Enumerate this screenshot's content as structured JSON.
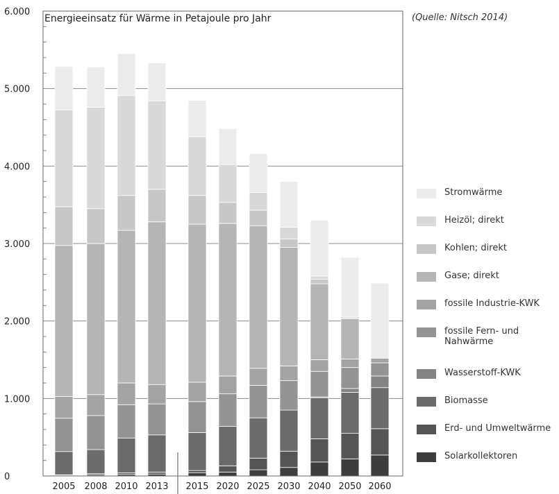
{
  "chart_data": {
    "type": "bar",
    "stacked": true,
    "title": "Energieeinsatz für Wärme in Petajoule pro Jahr",
    "source": "(Quelle: Nitsch 2014)",
    "xlabel": "",
    "ylabel": "",
    "ylim": [
      0,
      6000
    ],
    "y_ticks": [
      0,
      1000,
      2000,
      3000,
      4000,
      5000,
      6000
    ],
    "y_tick_labels": [
      "0",
      "1.000",
      "2.000",
      "3.000",
      "4.000",
      "5.000",
      "6.000"
    ],
    "grid": true,
    "legend_position": "right",
    "categories": [
      "2005",
      "2008",
      "2010",
      "2013",
      "2015",
      "2020",
      "2025",
      "2030",
      "2040",
      "2050",
      "2060"
    ],
    "series": [
      {
        "name": "Solarkollektoren",
        "color": "#3d3d3d",
        "values": [
          10,
          15,
          20,
          25,
          40,
          50,
          80,
          110,
          180,
          220,
          270
        ]
      },
      {
        "name": "Erd- und Umweltwärme",
        "color": "#555555",
        "values": [
          5,
          15,
          20,
          25,
          30,
          80,
          150,
          210,
          300,
          330,
          340
        ]
      },
      {
        "name": "Biomasse",
        "color": "#6b6b6b",
        "values": [
          300,
          310,
          450,
          480,
          490,
          510,
          520,
          530,
          530,
          530,
          530
        ]
      },
      {
        "name": "Wasserstoff-KWK",
        "color": "#848484",
        "values": [
          0,
          0,
          0,
          0,
          0,
          0,
          0,
          0,
          10,
          50,
          150
        ]
      },
      {
        "name": "fossile Fern- und Nahwärme",
        "color": "#939393",
        "values": [
          430,
          440,
          430,
          400,
          400,
          420,
          420,
          380,
          330,
          270,
          170
        ]
      },
      {
        "name": "fossile Industrie-KWK",
        "color": "#a3a3a3",
        "values": [
          280,
          270,
          280,
          250,
          250,
          230,
          220,
          190,
          150,
          110,
          60
        ]
      },
      {
        "name": "Gase; direkt",
        "color": "#b5b5b5",
        "values": [
          1950,
          1950,
          1970,
          2100,
          2040,
          1970,
          1840,
          1530,
          980,
          520,
          0
        ]
      },
      {
        "name": "Kohlen; direkt",
        "color": "#c7c7c7",
        "values": [
          500,
          450,
          450,
          420,
          370,
          270,
          200,
          110,
          60,
          0,
          0
        ]
      },
      {
        "name": "Heizöl; direkt",
        "color": "#d9d9d9",
        "values": [
          1250,
          1310,
          1290,
          1140,
          760,
          490,
          230,
          150,
          40,
          20,
          0
        ]
      },
      {
        "name": "Stromwärme",
        "color": "#ececec",
        "values": [
          560,
          520,
          540,
          490,
          470,
          460,
          500,
          590,
          720,
          770,
          970
        ]
      }
    ]
  }
}
